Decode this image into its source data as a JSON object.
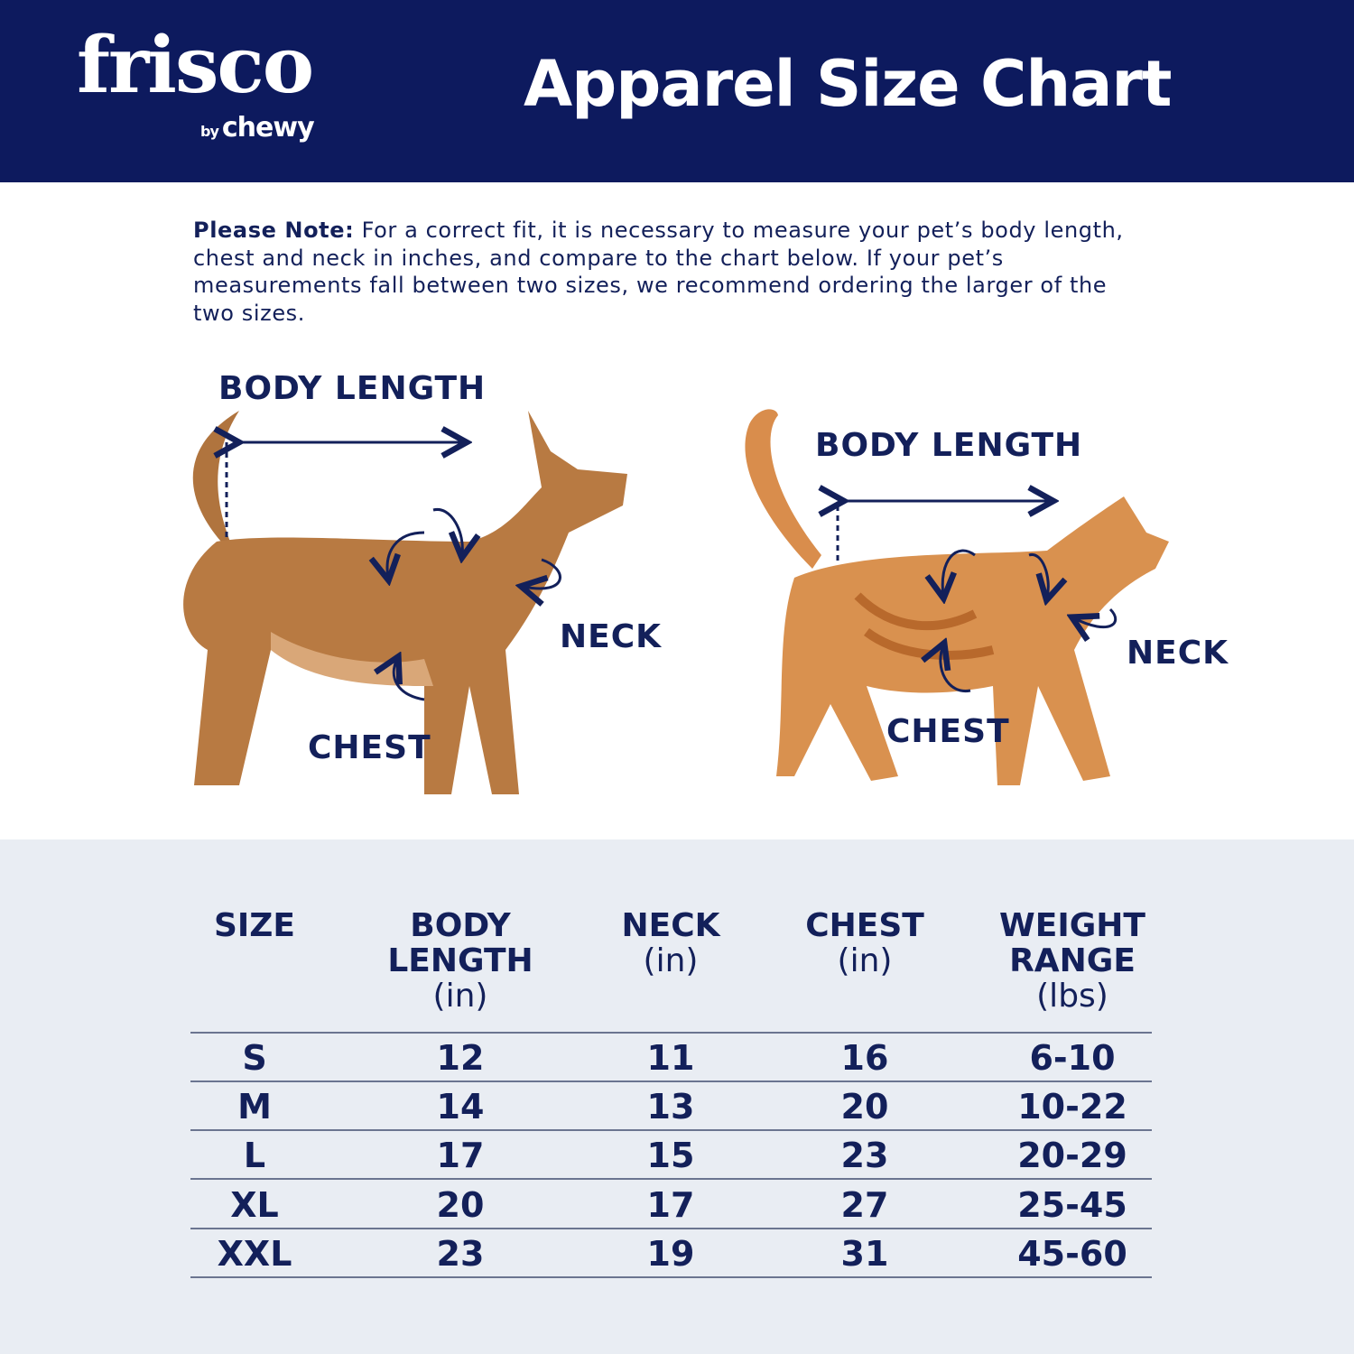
{
  "header": {
    "logo_text": "frisco",
    "logo_sub_by": "by",
    "logo_sub_brand": "chewy",
    "title": "Apparel Size Chart"
  },
  "note": {
    "bold": "Please Note:",
    "text": " For a correct fit, it is necessary to measure your pet’s body length, chest and neck in inches, and compare to the chart below. If your pet’s measurements fall between two sizes, we recommend ordering the larger of the two sizes."
  },
  "dog": {
    "body_length": "BODY LENGTH",
    "neck": "NECK",
    "chest": "CHEST"
  },
  "cat": {
    "body_length": "BODY LENGTH",
    "neck": "NECK",
    "chest": "CHEST"
  },
  "colors": {
    "navy": "#0d1a5e",
    "text": "#13205a",
    "table_bg": "#e9edf3"
  },
  "table": {
    "headers": [
      {
        "title": "SIZE",
        "title2": "",
        "unit": ""
      },
      {
        "title": "BODY",
        "title2": "LENGTH",
        "unit": "(in)"
      },
      {
        "title": "NECK",
        "title2": "",
        "unit": "(in)"
      },
      {
        "title": "CHEST",
        "title2": "",
        "unit": "(in)"
      },
      {
        "title": "WEIGHT",
        "title2": "RANGE",
        "unit": "(lbs)"
      }
    ],
    "rows": [
      [
        "S",
        "12",
        "11",
        "16",
        "6-10"
      ],
      [
        "M",
        "14",
        "13",
        "20",
        "10-22"
      ],
      [
        "L",
        "17",
        "15",
        "23",
        "20-29"
      ],
      [
        "XL",
        "20",
        "17",
        "27",
        "25-45"
      ],
      [
        "XXL",
        "23",
        "19",
        "31",
        "45-60"
      ]
    ]
  }
}
